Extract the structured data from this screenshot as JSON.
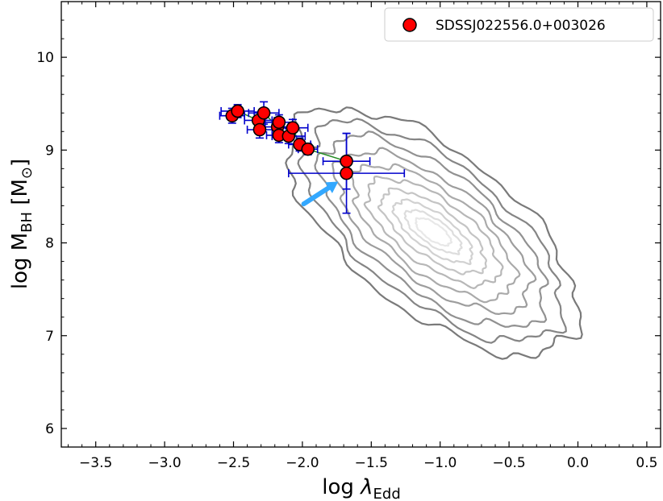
{
  "chart_data": {
    "type": "scatter",
    "xlabel": {
      "main": "log ",
      "symbol": "λ",
      "sub": "Edd"
    },
    "ylabel": {
      "main": "log M",
      "sub": "BH",
      "unit_open": " [M",
      "unit_sub": "⊙",
      "unit_close": "]"
    },
    "xlim": [
      -3.75,
      0.6
    ],
    "ylim": [
      5.8,
      10.6
    ],
    "x_ticks": [
      -3.5,
      -3.0,
      -2.5,
      -2.0,
      -1.5,
      -1.0,
      -0.5,
      0.0,
      0.5
    ],
    "x_tick_labels": [
      "−3.5",
      "−3.0",
      "−2.5",
      "−2.0",
      "−1.5",
      "−1.0",
      "−0.5",
      "0.0",
      "0.5"
    ],
    "y_ticks": [
      6,
      7,
      8,
      9,
      10
    ],
    "y_tick_labels": [
      "6",
      "7",
      "8",
      "9",
      "10"
    ],
    "grid": false,
    "legend_position": "top-right",
    "series": [
      {
        "name": "SDSSJ022556.0+003026",
        "color": "#ff0000",
        "edge_color": "#000000",
        "error_color": "#0000cc",
        "points": [
          {
            "x": -2.51,
            "y": 9.37,
            "xerr": 0.09,
            "yerr": 0.08
          },
          {
            "x": -2.47,
            "y": 9.42,
            "xerr": 0.12,
            "yerr": 0.07
          },
          {
            "x": -2.32,
            "y": 9.32,
            "xerr": 0.1,
            "yerr": 0.09
          },
          {
            "x": -2.31,
            "y": 9.22,
            "xerr": 0.09,
            "yerr": 0.09
          },
          {
            "x": -2.28,
            "y": 9.4,
            "xerr": 0.11,
            "yerr": 0.12
          },
          {
            "x": -2.18,
            "y": 9.25,
            "xerr": 0.14,
            "yerr": 0.1
          },
          {
            "x": -2.17,
            "y": 9.3,
            "xerr": 0.1,
            "yerr": 0.08
          },
          {
            "x": -2.17,
            "y": 9.16,
            "xerr": 0.09,
            "yerr": 0.08
          },
          {
            "x": -2.1,
            "y": 9.15,
            "xerr": 0.12,
            "yerr": 0.08
          },
          {
            "x": -2.07,
            "y": 9.24,
            "xerr": 0.11,
            "yerr": 0.09
          },
          {
            "x": -2.02,
            "y": 9.06,
            "xerr": 0.08,
            "yerr": 0.07
          },
          {
            "x": -1.96,
            "y": 9.01,
            "xerr": 0.07,
            "yerr": 0.06
          },
          {
            "x": -1.68,
            "y": 8.88,
            "xerr": 0.17,
            "yerr": 0.3
          },
          {
            "x": -1.68,
            "y": 8.75,
            "xerr": 0.42,
            "yerr": 0.43
          }
        ],
        "connector_color": "#228b22"
      }
    ],
    "annotation": {
      "type": "arrow",
      "color": "#33a8ff",
      "from": [
        -1.99,
        8.42
      ],
      "to": [
        -1.74,
        8.66
      ]
    },
    "background_distribution": {
      "type": "contour",
      "color": "#808080",
      "center": [
        -1.05,
        8.12
      ],
      "levels": [
        {
          "a": 1.25,
          "b": 0.58,
          "angle": -38,
          "gray": "#7a7a7a"
        },
        {
          "a": 1.12,
          "b": 0.5,
          "angle": -38,
          "gray": "#858585"
        },
        {
          "a": 0.98,
          "b": 0.43,
          "angle": -38,
          "gray": "#919191"
        },
        {
          "a": 0.84,
          "b": 0.36,
          "angle": -37,
          "gray": "#9d9d9d"
        },
        {
          "a": 0.7,
          "b": 0.3,
          "angle": -37,
          "gray": "#aaaaaa"
        },
        {
          "a": 0.57,
          "b": 0.24,
          "angle": -36,
          "gray": "#b7b7b7"
        },
        {
          "a": 0.45,
          "b": 0.18,
          "angle": -36,
          "gray": "#c4c4c4"
        },
        {
          "a": 0.34,
          "b": 0.13,
          "angle": -36,
          "gray": "#d1d1d1"
        },
        {
          "a": 0.24,
          "b": 0.09,
          "angle": -35,
          "gray": "#dddddd"
        },
        {
          "a": 0.15,
          "b": 0.06,
          "angle": -35,
          "gray": "#e8e8e8"
        }
      ]
    }
  }
}
